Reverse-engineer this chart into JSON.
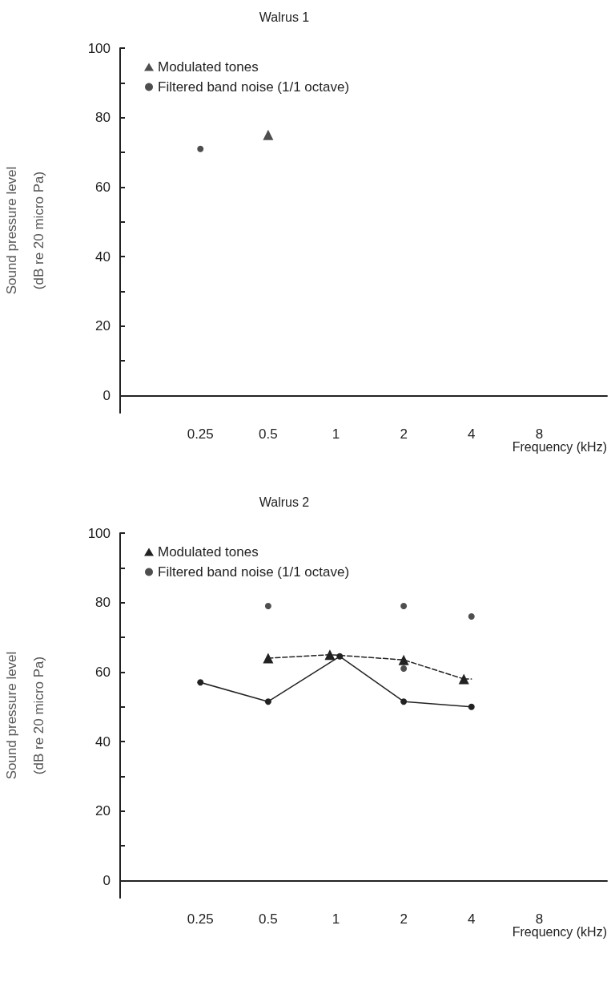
{
  "chart_data": [
    {
      "type": "scatter",
      "title": "Walrus 1",
      "xlabel": "Frequency (kHz)",
      "ylabel": "Sound pressure level\n(dB re 20 micro Pa)",
      "log": "x",
      "xlim": [
        0.11,
        16
      ],
      "xticks": [
        0.25,
        0.5,
        1,
        2,
        4,
        8
      ],
      "ylim": [
        -5,
        100
      ],
      "yticks": [
        0,
        {
          "value": 10,
          "label": null
        },
        20,
        {
          "value": 30,
          "label": null
        },
        40,
        {
          "value": 50,
          "label": null
        },
        60,
        {
          "value": 70,
          "label": null
        },
        80,
        {
          "value": 90,
          "label": null
        },
        100
      ],
      "grid": false,
      "legend": "top left",
      "series": [
        {
          "name": "Modulated tones",
          "color": "#222222",
          "marker": "triangle",
          "x": [
            0.5
          ],
          "values": [
            75
          ]
        },
        {
          "name": "Filtered band noise (1/1 octave)",
          "color": "#222222",
          "marker": "circle",
          "x": [
            0.25
          ],
          "values": [
            71
          ]
        }
      ]
    },
    {
      "type": "scatter",
      "title": "Walrus 2",
      "xlabel": "Frequency (kHz)",
      "ylabel": "Sound pressure level\n(dB re 20 micro Pa)",
      "log": "x",
      "xlim": [
        0.11,
        16
      ],
      "xticks": [
        0.25,
        0.5,
        1,
        2,
        4,
        8
      ],
      "ylim": [
        -5,
        100
      ],
      "yticks": [
        0,
        {
          "value": 10,
          "label": null
        },
        20,
        {
          "value": 30,
          "label": null
        },
        40,
        {
          "value": 50,
          "label": null
        },
        60,
        {
          "value": 70,
          "label": null
        },
        80,
        {
          "value": 90,
          "label": null
        },
        100
      ],
      "grid": false,
      "legend": "top left",
      "series": [
        {
          "name": "Modulated tones",
          "type": "line",
          "line_style": "dashed",
          "color": "#222222",
          "marker": "triangle",
          "x": [
            0.5,
            0.94,
            2,
            3.7
          ],
          "values": [
            64,
            65,
            63.5,
            58
          ]
        },
        {
          "name": "Filtered band noise (1/1 octave)",
          "color": "#222222",
          "marker": "circle",
          "x": [
            0.5,
            2,
            4,
            2
          ],
          "values": [
            79,
            79,
            76,
            61
          ]
        },
        {
          "type": "line",
          "line_style": "dashed",
          "color": "#222222",
          "marker": "none",
          "x": [
            3.7,
            4
          ],
          "values": [
            58,
            58
          ]
        },
        {
          "type": "line",
          "line_style": "solid",
          "color": "#222222",
          "marker": "circle",
          "x": [
            0.25,
            0.5,
            1.04,
            2,
            4
          ],
          "values": [
            57,
            51.5,
            64.5,
            51.5,
            50
          ]
        }
      ]
    }
  ]
}
